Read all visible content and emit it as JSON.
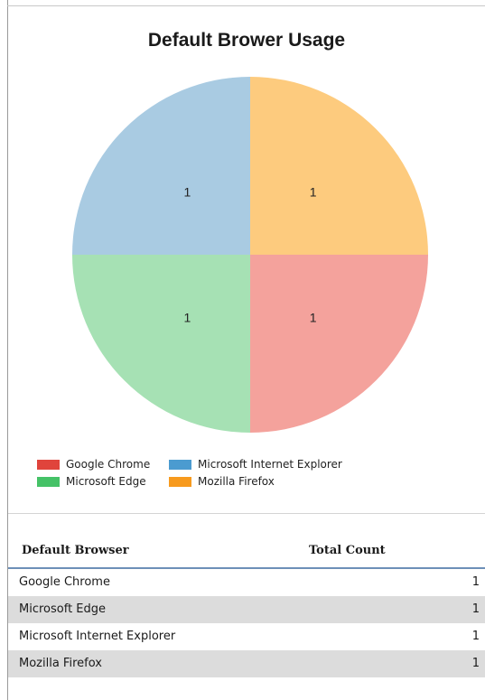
{
  "chart_data": {
    "type": "pie",
    "title": "Default Brower Usage",
    "slices": [
      {
        "label": "Google Chrome",
        "value": 1,
        "data_label": "1",
        "color": "#f4a29c"
      },
      {
        "label": "Microsoft Edge",
        "value": 1,
        "data_label": "1",
        "color": "#a6e1b4"
      },
      {
        "label": "Microsoft Internet Explorer",
        "value": 1,
        "data_label": "1",
        "color": "#a9cbe2"
      },
      {
        "label": "Mozilla Firefox",
        "value": 1,
        "data_label": "1",
        "color": "#fdcb7e"
      }
    ],
    "legend": {
      "placement": "bottom-left",
      "entries": [
        {
          "label": "Google Chrome",
          "color": "#e0443c"
        },
        {
          "label": "Microsoft Internet Explorer",
          "color": "#4b9bd0"
        },
        {
          "label": "Microsoft Edge",
          "color": "#45c267"
        },
        {
          "label": "Mozilla Firefox",
          "color": "#f79a1e"
        }
      ]
    }
  },
  "table": {
    "headers": [
      "Default Browser",
      "Total Count"
    ],
    "rows": [
      {
        "browser": "Google Chrome",
        "count": "1"
      },
      {
        "browser": "Microsoft Edge",
        "count": "1"
      },
      {
        "browser": "Microsoft Internet Explorer",
        "count": "1"
      },
      {
        "browser": "Mozilla Firefox",
        "count": "1"
      }
    ]
  }
}
